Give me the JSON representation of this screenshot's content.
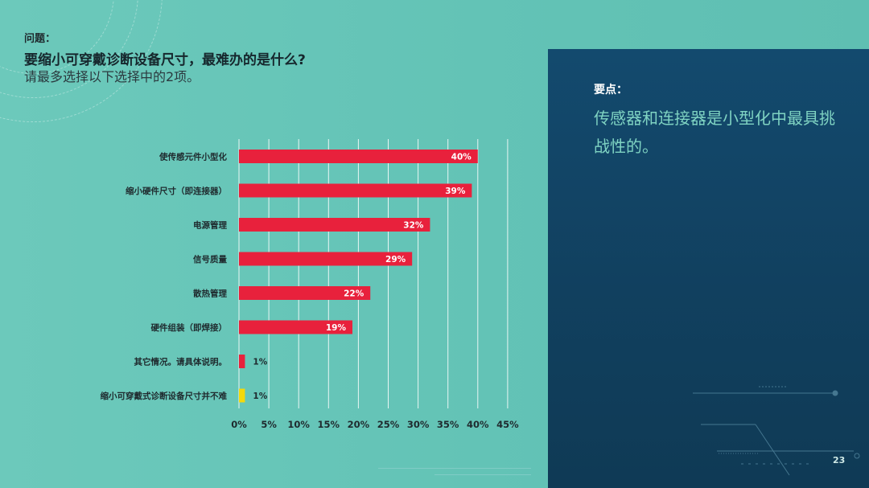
{
  "question": {
    "label": "问题：",
    "title": "要缩小可穿戴诊断设备尺寸，最难办的是什么?",
    "subtitle": "请最多选择以下选择中的2项。"
  },
  "key_points": {
    "label": "要点：",
    "text": "传感器和连接器是小型化中最具挑战性的。"
  },
  "page_number": "23",
  "colors": {
    "background": "#66c6b8",
    "panel": "#124567",
    "bar_primary": "#e8213c",
    "bar_highlight": "#f5d90a",
    "key_text": "#7fd3c2"
  },
  "chart_data": {
    "type": "bar",
    "orientation": "horizontal",
    "categories": [
      "使传感元件小型化",
      "缩小硬件尺寸（即连接器）",
      "电源管理",
      "信号质量",
      "散热管理",
      "硬件组装（即焊接）",
      "其它情况。请具体说明。",
      "缩小可穿戴式诊断设备尺寸并不难"
    ],
    "values": [
      40,
      39,
      32,
      29,
      22,
      19,
      1,
      1
    ],
    "data_labels": [
      "40%",
      "39%",
      "32%",
      "29%",
      "22%",
      "19%",
      "1%",
      "1%"
    ],
    "bar_colors": [
      "#e8213c",
      "#e8213c",
      "#e8213c",
      "#e8213c",
      "#e8213c",
      "#e8213c",
      "#e8213c",
      "#f5d90a"
    ],
    "xticks": [
      0,
      5,
      10,
      15,
      20,
      25,
      30,
      35,
      40,
      45
    ],
    "xtick_labels": [
      "0%",
      "5%",
      "10%",
      "15%",
      "20%",
      "25%",
      "30%",
      "35%",
      "40%",
      "45%"
    ],
    "xlim": [
      0,
      45
    ],
    "grid": true,
    "title": "",
    "xlabel": "",
    "ylabel": ""
  }
}
